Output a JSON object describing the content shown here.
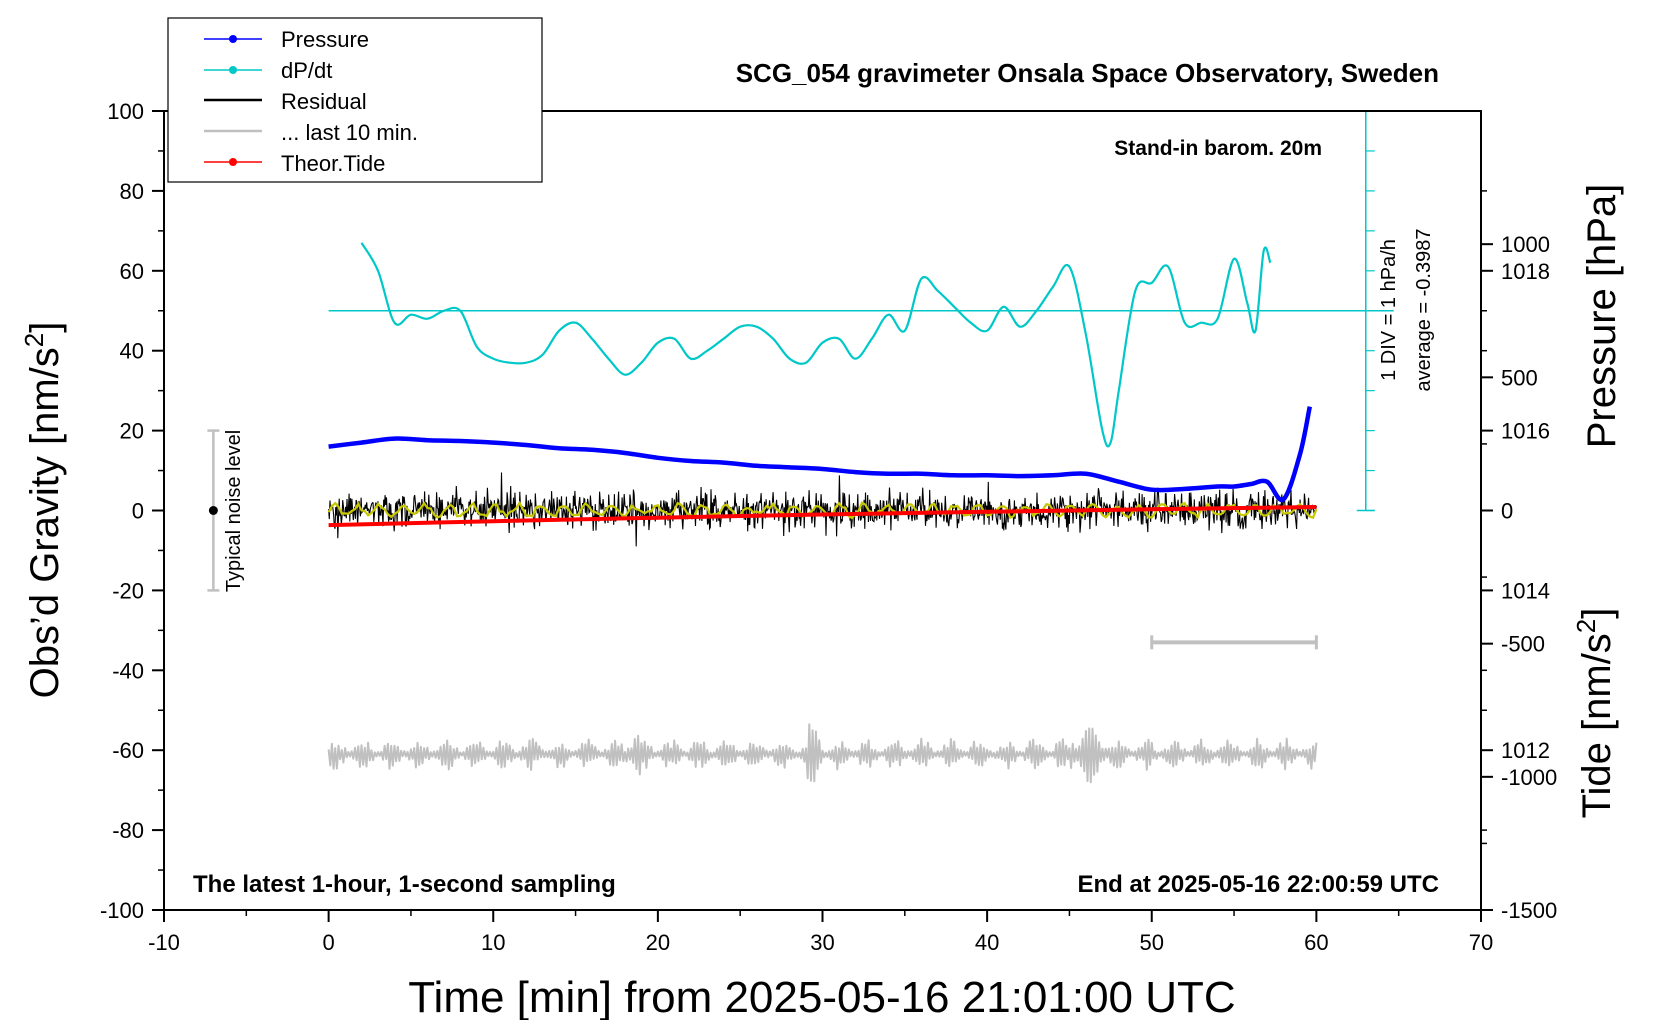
{
  "chart_data": {
    "type": "line",
    "title": "SCG_054 gravimeter Onsala Space Observatory, Sweden",
    "xlabel": "Time [min] from 2025-05-16 21:01:00 UTC",
    "xlim": [
      -10,
      70
    ],
    "x_ticks": [
      "-10",
      "0",
      "10",
      "20",
      "30",
      "40",
      "50",
      "60",
      "70"
    ],
    "ylabel_left": "Obs’d Gravity [nm/s2]",
    "ylim_left": [
      -100,
      100
    ],
    "y_ticks_left": [
      "100",
      "80",
      "60",
      "40",
      "20",
      "0",
      "-20",
      "-40",
      "-60",
      "-80",
      "-100"
    ],
    "ylabel_right_pressure": "Pressure [hPa]",
    "pressure_axis_range": [
      1010,
      1020
    ],
    "pressure_ticks": [
      "1018",
      "1016",
      "1014",
      "1012"
    ],
    "ylabel_right_tide": "Tide [nm/s2]",
    "tide_axis_range": [
      -1500,
      1500
    ],
    "tide_ticks": [
      "1000",
      "500",
      "0",
      "-500",
      "-1000",
      "-1500"
    ],
    "grid": false,
    "legend_position": "top-left",
    "legend": [
      {
        "label": "Pressure",
        "color": "#0000ff",
        "marker": "dot"
      },
      {
        "label": "dP/dt",
        "color": "#00c8c8",
        "marker": "dot"
      },
      {
        "label": "Residual",
        "color": "#000000",
        "marker": "none"
      },
      {
        "label": "... last 10 min.",
        "color": "#c0c0c0",
        "marker": "none"
      },
      {
        "label": "Theor.Tide",
        "color": "#ff0000",
        "marker": "dot"
      }
    ],
    "annotations": {
      "barometer_note": "Stand-in barom. 20m",
      "div_note": "1 DIV = 1 hPa/h",
      "average_note": "average = -0.3987",
      "noise_label": "Typical noise level",
      "bottom_left_note": "The latest 1-hour, 1-second sampling",
      "bottom_right_note": "End at 2025-05-16 22:00:59 UTC"
    },
    "noise_bar": {
      "x": -7,
      "y_center": 0,
      "y_range": [
        -20,
        20
      ]
    },
    "last10_marker": {
      "x_range": [
        50,
        60
      ],
      "y": -33
    },
    "series": [
      {
        "name": "Pressure",
        "axis": "pressure",
        "color": "#0000ff",
        "x": [
          0,
          2,
          4,
          6,
          8,
          10,
          12,
          14,
          16,
          18,
          20,
          22,
          24,
          26,
          28,
          30,
          32,
          34,
          36,
          38,
          40,
          42,
          44,
          46,
          48,
          50,
          52,
          54,
          55,
          56,
          57,
          58,
          59,
          59.6
        ],
        "values": [
          1015.8,
          1015.85,
          1015.9,
          1015.88,
          1015.87,
          1015.85,
          1015.82,
          1015.78,
          1015.76,
          1015.72,
          1015.66,
          1015.62,
          1015.6,
          1015.56,
          1015.54,
          1015.52,
          1015.48,
          1015.46,
          1015.46,
          1015.44,
          1015.44,
          1015.43,
          1015.44,
          1015.46,
          1015.36,
          1015.26,
          1015.27,
          1015.3,
          1015.3,
          1015.33,
          1015.36,
          1015.14,
          1015.7,
          1016.3
        ]
      },
      {
        "name": "dP/dt",
        "axis": "left",
        "color": "#00c8c8",
        "x": [
          2,
          3,
          4,
          5,
          6,
          7,
          8,
          9,
          10,
          11,
          12,
          13,
          14,
          15,
          16,
          17,
          18,
          19,
          20,
          21,
          22,
          23,
          24,
          25,
          26,
          27,
          28,
          29,
          30,
          31,
          32,
          33,
          34,
          35,
          36,
          37,
          38,
          39,
          40,
          41,
          42,
          43,
          44,
          45,
          46,
          47,
          47.5,
          48,
          49,
          50,
          51,
          52,
          53,
          54,
          55,
          55.8,
          56.3,
          56.8,
          57.2
        ],
        "values": [
          67,
          60,
          47,
          49,
          48,
          50,
          50,
          41,
          38,
          37,
          37,
          39,
          45,
          47,
          43,
          38,
          34,
          37,
          42,
          43,
          38,
          40,
          43,
          46,
          46,
          43,
          38,
          37,
          42,
          43,
          38,
          43,
          49,
          45,
          58,
          55,
          51,
          47,
          45,
          51,
          46,
          50,
          56,
          61,
          44,
          20,
          17,
          30,
          55,
          57,
          61,
          47,
          47,
          48,
          63,
          52,
          45,
          65,
          62
        ]
      },
      {
        "name": "Residual",
        "axis": "left",
        "color": "#000000",
        "x_range": [
          0,
          60
        ],
        "amplitude_typical": 6,
        "amplitude_max": 10,
        "smoothed_color": "#c8c800"
      },
      {
        "name": "... last 10 min.",
        "axis": "left",
        "color": "#c0c0c0",
        "x_range": [
          0,
          60
        ],
        "baseline": -61,
        "amplitude_typical": 4,
        "amplitude_max": 8
      },
      {
        "name": "Theor.Tide",
        "axis": "tide",
        "color": "#ff0000",
        "x": [
          0,
          10,
          20,
          30,
          40,
          50,
          60
        ],
        "values": [
          -55,
          -40,
          -27,
          -15,
          -5,
          5,
          13
        ]
      }
    ]
  }
}
